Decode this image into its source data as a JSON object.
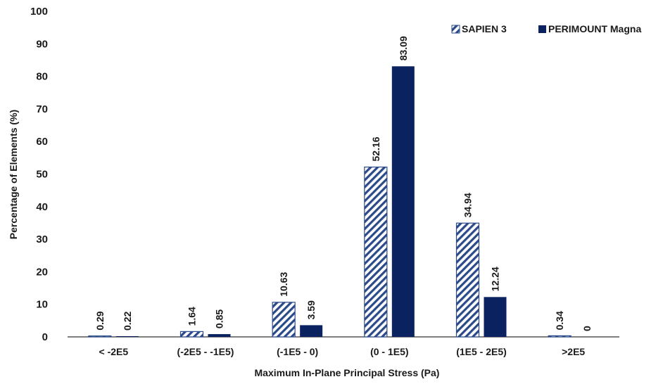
{
  "chart_data": {
    "type": "bar",
    "categories": [
      "< -2E5",
      "(-2E5 - -1E5)",
      "(-1E5 - 0)",
      "(0 - 1E5)",
      "(1E5 - 2E5)",
      ">2E5"
    ],
    "series": [
      {
        "name": "SAPIEN 3",
        "values": [
          0.29,
          1.64,
          10.63,
          52.16,
          34.94,
          0.34
        ],
        "labels": [
          "0.29",
          "1.64",
          "10.63",
          "52.16",
          "34.94",
          "0.34"
        ],
        "fill": "hatched",
        "color": "#2b4a8a"
      },
      {
        "name": "PERIMOUNT Magna",
        "values": [
          0.22,
          0.85,
          3.59,
          83.09,
          12.24,
          0
        ],
        "labels": [
          "0.22",
          "0.85",
          "3.59",
          "83.09",
          "12.24",
          "0"
        ],
        "fill": "solid",
        "color": "#0b2260"
      }
    ],
    "xlabel": "Maximum In-Plane Principal Stress (Pa)",
    "ylabel": "Percentage of Elements (%)",
    "ylim": [
      0,
      100
    ],
    "yticks": [
      0,
      10,
      20,
      30,
      40,
      50,
      60,
      70,
      80,
      90,
      100
    ],
    "grid": false,
    "legend_position": "top-right"
  }
}
